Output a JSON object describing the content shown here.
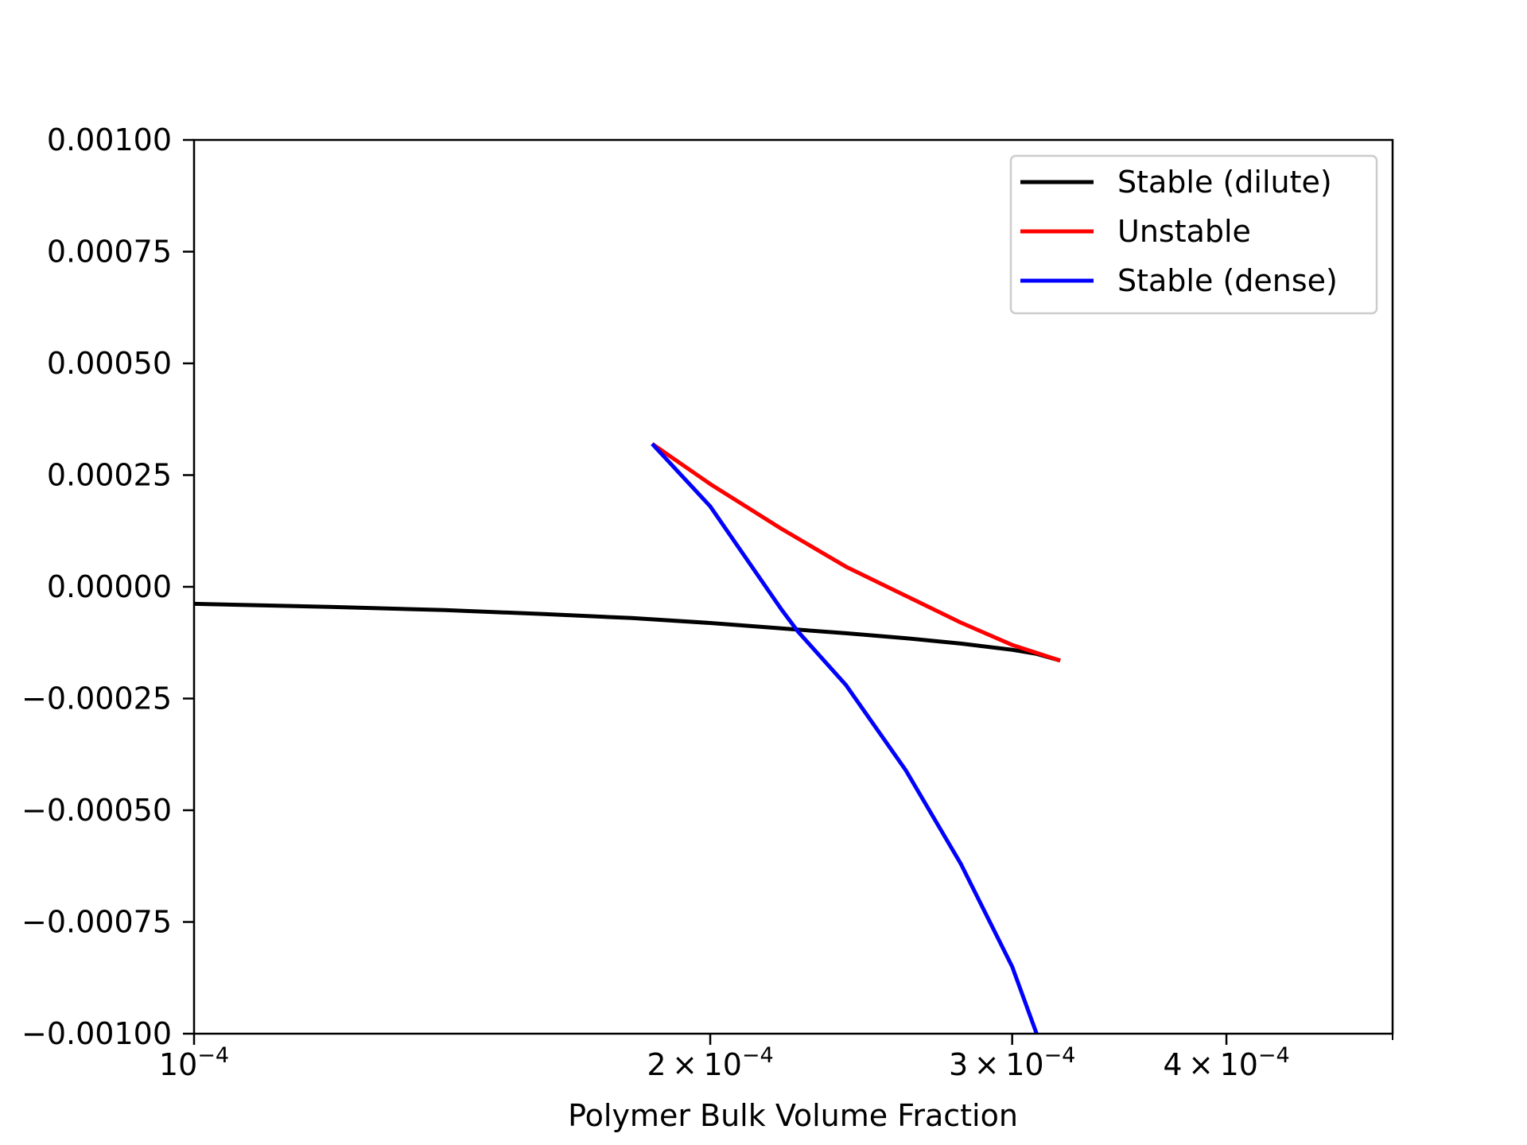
{
  "chart_data": {
    "type": "line",
    "title": "",
    "xlabel": "Polymer Bulk Volume Fraction",
    "ylabel": "",
    "xscale": "log",
    "xlim": [
      0.0001,
      0.0005
    ],
    "ylim": [
      -0.001,
      0.001
    ],
    "grid": false,
    "legend_position": "top-right",
    "x_ticks": [
      {
        "value": 0.0001,
        "mantissa": "",
        "base": "10",
        "exp": "−4"
      },
      {
        "value": 0.0002,
        "mantissa": "2 × ",
        "base": "10",
        "exp": "−4"
      },
      {
        "value": 0.0003,
        "mantissa": "3 × ",
        "base": "10",
        "exp": "−4"
      },
      {
        "value": 0.0004,
        "mantissa": "4 × ",
        "base": "10",
        "exp": "−4"
      }
    ],
    "x_minor_ticks": [
      0.0005
    ],
    "y_ticks": [
      {
        "value": 0.001,
        "label": "0.00100"
      },
      {
        "value": 0.00075,
        "label": "0.00075"
      },
      {
        "value": 0.0005,
        "label": "0.00050"
      },
      {
        "value": 0.00025,
        "label": "0.00025"
      },
      {
        "value": 0.0,
        "label": "0.00000"
      },
      {
        "value": -0.00025,
        "label": "−0.00025"
      },
      {
        "value": -0.0005,
        "label": "−0.00050"
      },
      {
        "value": -0.00075,
        "label": "−0.00075"
      },
      {
        "value": -0.001,
        "label": "−0.00100"
      }
    ],
    "series": [
      {
        "name": "Stable (dilute)",
        "color": "#000000",
        "x": [
          0.0001,
          0.00012,
          0.00014,
          0.00016,
          0.00018,
          0.0002,
          0.00022,
          0.00024,
          0.00026,
          0.00028,
          0.0003,
          0.00031,
          0.00032
        ],
        "y": [
          -3.8e-05,
          -4.5e-05,
          -5.2e-05,
          -6.1e-05,
          -7e-05,
          -8.1e-05,
          -9.3e-05,
          -0.000104,
          -0.000115,
          -0.000127,
          -0.000141,
          -0.00015,
          -0.000165
        ]
      },
      {
        "name": "Unstable",
        "color": "#ff0000",
        "x": [
          0.000185,
          0.0002,
          0.00022,
          0.00024,
          0.00026,
          0.00028,
          0.0003,
          0.00032
        ],
        "y": [
          0.00032,
          0.00023,
          0.00013,
          4.5e-05,
          -2e-05,
          -8e-05,
          -0.00013,
          -0.000165
        ]
      },
      {
        "name": "Stable (dense)",
        "color": "#0000ff",
        "x": [
          0.000185,
          0.0002,
          0.00022,
          0.000225,
          0.00024,
          0.00026,
          0.00028,
          0.0003,
          0.00031
        ],
        "y": [
          0.00032,
          0.00018,
          -5e-05,
          -0.0001,
          -0.00022,
          -0.00041,
          -0.00062,
          -0.00085,
          -0.001
        ]
      }
    ]
  }
}
